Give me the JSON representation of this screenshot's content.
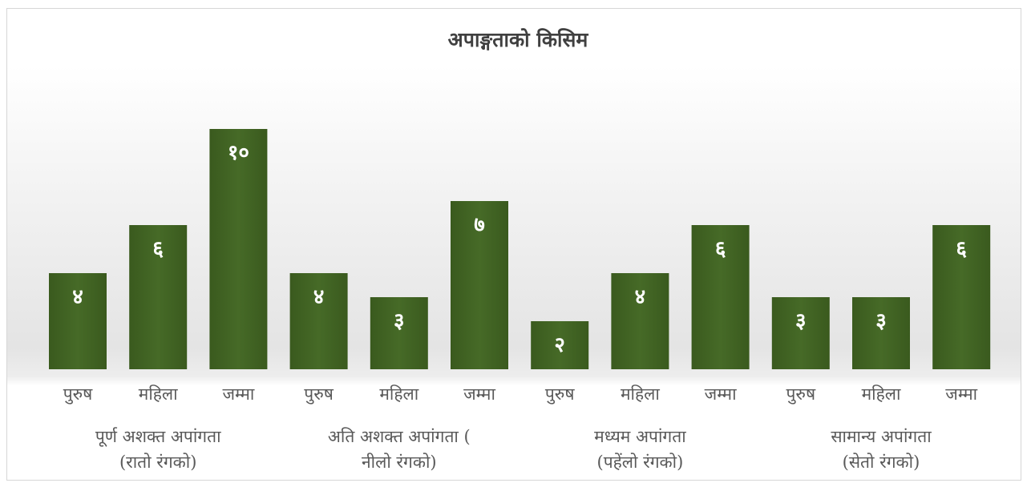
{
  "chart_data": {
    "type": "bar",
    "title": "अपाङ्गताको किसिम",
    "groups": [
      {
        "label_lines": [
          "पूर्ण अशक्त अपांगता",
          "(रातो रंगको)"
        ],
        "bars": [
          {
            "category": "पुरुष",
            "value": 4,
            "label": "४"
          },
          {
            "category": "महिला",
            "value": 6,
            "label": "६"
          },
          {
            "category": "जम्मा",
            "value": 10,
            "label": "१०"
          }
        ]
      },
      {
        "label_lines": [
          "अति अशक्त अपांगता (",
          "नीलो रंगको)"
        ],
        "bars": [
          {
            "category": "पुरुष",
            "value": 4,
            "label": "४"
          },
          {
            "category": "महिला",
            "value": 3,
            "label": "३"
          },
          {
            "category": "जम्मा",
            "value": 7,
            "label": "७"
          }
        ]
      },
      {
        "label_lines": [
          "मध्यम अपांगता",
          "(पहेंलो रंगको)"
        ],
        "bars": [
          {
            "category": "पुरुष",
            "value": 2,
            "label": "२"
          },
          {
            "category": "महिला",
            "value": 4,
            "label": "४"
          },
          {
            "category": "जम्मा",
            "value": 6,
            "label": "६"
          }
        ]
      },
      {
        "label_lines": [
          "सामान्य अपांगता",
          "(सेतो रंगको)"
        ],
        "bars": [
          {
            "category": "पुरुष",
            "value": 3,
            "label": "३"
          },
          {
            "category": "महिला",
            "value": 3,
            "label": "३"
          },
          {
            "category": "जम्मा",
            "value": 6,
            "label": "६"
          }
        ]
      }
    ],
    "ylim": [
      0,
      10
    ],
    "grid": false,
    "bar_color": "#3e5e22"
  }
}
